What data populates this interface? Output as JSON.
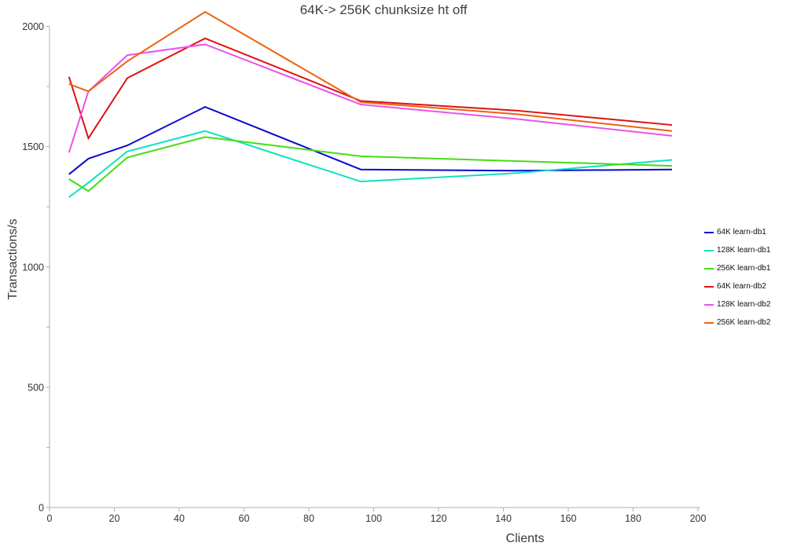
{
  "chart_data": {
    "type": "line",
    "title": "64K-> 256K chunksize ht off",
    "xlabel": "Clients",
    "ylabel": "Transactions/s",
    "xlim": [
      0,
      200
    ],
    "ylim": [
      0,
      2000
    ],
    "grid": false,
    "legend_position": "right",
    "x_ticks": [
      0,
      20,
      40,
      60,
      80,
      100,
      120,
      140,
      160,
      180,
      200
    ],
    "y_ticks_major": [
      0,
      500,
      1000,
      1500,
      2000
    ],
    "y_ticks_minor": [
      250,
      750,
      1250,
      1750
    ],
    "x": [
      6,
      12,
      24,
      48,
      96,
      144,
      192
    ],
    "series": [
      {
        "name": "64K learn-db1",
        "color": "#0a0acd",
        "values": [
          1385,
          1450,
          1505,
          1665,
          1405,
          1400,
          1405
        ]
      },
      {
        "name": "128K learn-db1",
        "color": "#0de2c0",
        "values": [
          1290,
          1350,
          1480,
          1565,
          1355,
          1390,
          1445
        ]
      },
      {
        "name": "256K learn-db1",
        "color": "#44dd12",
        "values": [
          1365,
          1315,
          1455,
          1540,
          1460,
          1440,
          1420
        ]
      },
      {
        "name": "64K learn-db2",
        "color": "#dd1111",
        "values": [
          1790,
          1535,
          1785,
          1950,
          1690,
          1650,
          1590
        ]
      },
      {
        "name": "128K learn-db2",
        "color": "#ec52ec",
        "values": [
          1475,
          1730,
          1880,
          1925,
          1675,
          1615,
          1545
        ]
      },
      {
        "name": "256K learn-db2",
        "color": "#ec6210",
        "values": [
          1760,
          1730,
          1855,
          2060,
          1685,
          1635,
          1565
        ]
      }
    ],
    "axis_color": "#b0b0b0",
    "tick_label_color": "#333333"
  }
}
